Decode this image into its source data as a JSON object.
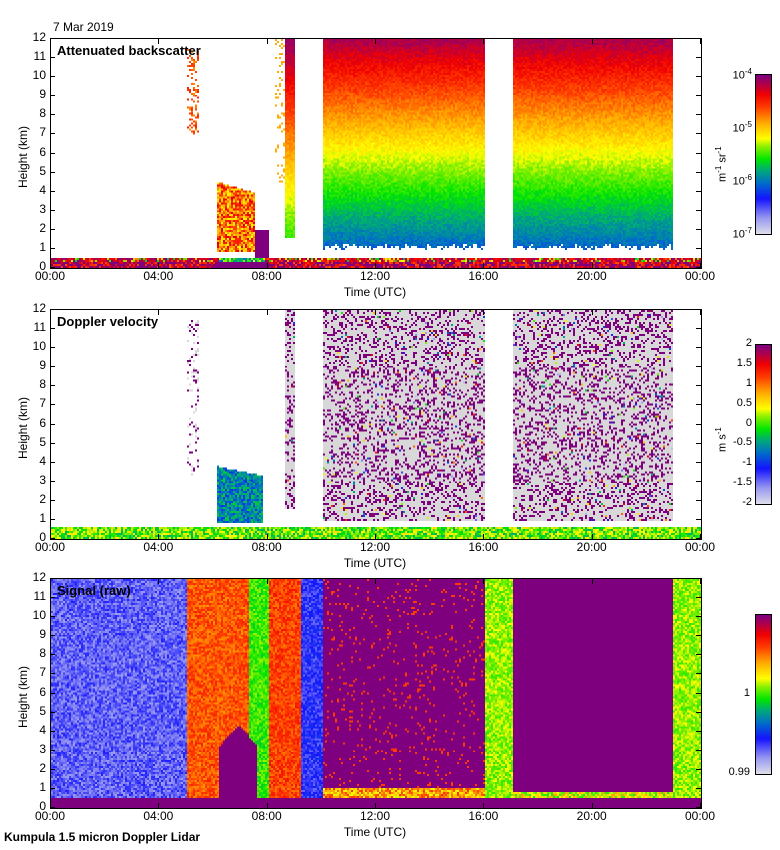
{
  "date_label": "7 Mar 2019",
  "footer": "Kumpula 1.5 micron Doppler Lidar",
  "colors": {
    "missing_bg": "#ffffff",
    "noise_grey": "#d8d8d8",
    "saturation_purple": "#7f007f"
  },
  "chart_data": [
    {
      "type": "heatmap",
      "title": "Attenuated backscatter",
      "xlabel": "Time (UTC)",
      "ylabel": "Height (km)",
      "xlim_hours": [
        0,
        24
      ],
      "ylim": [
        0,
        12
      ],
      "xticks": [
        "00:00",
        "04:00",
        "08:00",
        "12:00",
        "16:00",
        "20:00",
        "00:00"
      ],
      "yticks": [
        "0",
        "1",
        "2",
        "3",
        "4",
        "5",
        "6",
        "7",
        "8",
        "9",
        "10",
        "11",
        "12"
      ],
      "colorbar": {
        "scale": "log",
        "range": [
          1e-07,
          0.0001
        ],
        "ticks": [
          {
            "base": "10",
            "exp": "-4"
          },
          {
            "base": "10",
            "exp": "-5"
          },
          {
            "base": "10",
            "exp": "-6"
          },
          {
            "base": "10",
            "exp": "-7"
          }
        ],
        "unit_base": [
          "m",
          "sr"
        ],
        "unit_exp": [
          "-1",
          "-1"
        ]
      },
      "features": [
        {
          "desc": "near-surface layer",
          "t": [
            0,
            24
          ],
          "h": [
            0,
            0.5
          ],
          "value": "high"
        },
        {
          "desc": "sparse high aerosol/cloud",
          "t": [
            5.0,
            5.4
          ],
          "h": [
            7,
            11.5
          ],
          "value": "~3e-5"
        },
        {
          "desc": "low cloud",
          "t": [
            6.1,
            7.4
          ],
          "h": [
            0.8,
            4.5
          ],
          "value": "~5e-5"
        },
        {
          "desc": "column",
          "t": [
            8.6,
            9.0
          ],
          "h": [
            1.5,
            12
          ],
          "value": "gradient"
        },
        {
          "desc": "noise-dominated column",
          "t": [
            10.0,
            16.0
          ],
          "h": [
            0.5,
            12
          ],
          "value": "gradient"
        },
        {
          "desc": "data gap",
          "t": [
            16.0,
            17.0
          ],
          "h": [
            0,
            12
          ],
          "value": null
        },
        {
          "desc": "noise-dominated column",
          "t": [
            17.0,
            22.9
          ],
          "h": [
            0.5,
            12
          ],
          "value": "gradient"
        }
      ]
    },
    {
      "type": "heatmap",
      "title": "Doppler velocity",
      "xlabel": "Time (UTC)",
      "ylabel": "Height (km)",
      "xlim_hours": [
        0,
        24
      ],
      "ylim": [
        0,
        12
      ],
      "xticks": [
        "00:00",
        "04:00",
        "08:00",
        "12:00",
        "16:00",
        "20:00",
        "00:00"
      ],
      "yticks": [
        "0",
        "1",
        "2",
        "3",
        "4",
        "5",
        "6",
        "7",
        "8",
        "9",
        "10",
        "11",
        "12"
      ],
      "colorbar": {
        "scale": "linear",
        "range": [
          -2,
          2
        ],
        "ticks": [
          "2",
          "1.5",
          "1",
          "0.5",
          "0",
          "-0.5",
          "-1",
          "-1.5",
          "-2"
        ],
        "unit_base": [
          "m",
          "s"
        ],
        "unit_exp": [
          "",
          "-1"
        ]
      },
      "features": [
        {
          "desc": "boundary layer",
          "t": [
            0,
            24
          ],
          "h": [
            0,
            0.6
          ],
          "value": "~0"
        },
        {
          "desc": "cloud falling",
          "t": [
            6.1,
            7.8
          ],
          "h": [
            0.8,
            3.8
          ],
          "value": "~-1"
        },
        {
          "desc": "noise",
          "t": [
            10.0,
            16.0
          ],
          "h": [
            0.5,
            12
          ],
          "value": "noise"
        },
        {
          "desc": "data gap",
          "t": [
            16.0,
            17.0
          ],
          "h": [
            0,
            12
          ],
          "value": null
        },
        {
          "desc": "noise",
          "t": [
            17.0,
            22.9
          ],
          "h": [
            0.5,
            12
          ],
          "value": "noise"
        }
      ]
    },
    {
      "type": "heatmap",
      "title": "Signal (raw)",
      "xlabel": "Time (UTC)",
      "ylabel": "Height (km)",
      "xlim_hours": [
        0,
        24
      ],
      "ylim": [
        0,
        12
      ],
      "xticks": [
        "00:00",
        "04:00",
        "08:00",
        "12:00",
        "16:00",
        "20:00",
        "00:00"
      ],
      "yticks": [
        "0",
        "1",
        "2",
        "3",
        "4",
        "5",
        "6",
        "7",
        "8",
        "9",
        "10",
        "11",
        "12"
      ],
      "colorbar": {
        "scale": "linear",
        "range": [
          0.99,
          1.01
        ],
        "ticks": [
          "1",
          "0.99"
        ],
        "unit_base": [],
        "unit_exp": []
      },
      "features": [
        {
          "desc": "low signal",
          "t": [
            0,
            5.0
          ],
          "h": [
            0.5,
            12
          ],
          "value": "~0.994"
        },
        {
          "desc": "elevated",
          "t": [
            5.0,
            7.3
          ],
          "h": [
            0.5,
            12
          ],
          "value": "~1.006"
        },
        {
          "desc": "mid",
          "t": [
            7.3,
            8.0
          ],
          "h": [
            0.5,
            12
          ],
          "value": "~1.0"
        },
        {
          "desc": "elevated",
          "t": [
            8.0,
            9.2
          ],
          "h": [
            0.5,
            12
          ],
          "value": "~1.007"
        },
        {
          "desc": "low",
          "t": [
            9.2,
            10.0
          ],
          "h": [
            0.5,
            12
          ],
          "value": "~0.995"
        },
        {
          "desc": "saturated",
          "t": [
            10.0,
            16.0
          ],
          "h": [
            0,
            12
          ],
          "value": ">=1.01"
        },
        {
          "desc": "mid",
          "t": [
            16.0,
            17.0
          ],
          "h": [
            0,
            12
          ],
          "value": "~1.002"
        },
        {
          "desc": "saturated",
          "t": [
            17.0,
            22.9
          ],
          "h": [
            0,
            12
          ],
          "value": ">=1.01"
        },
        {
          "desc": "mid",
          "t": [
            22.9,
            24
          ],
          "h": [
            0,
            12
          ],
          "value": "~1.002"
        }
      ]
    }
  ]
}
